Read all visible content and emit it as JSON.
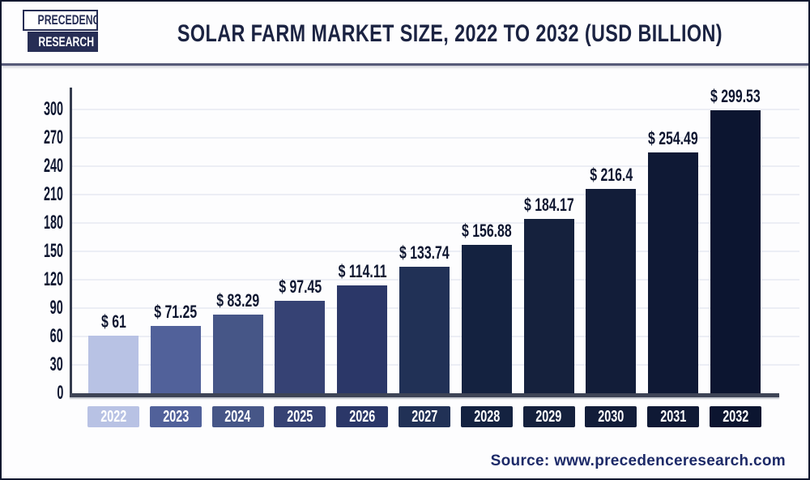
{
  "header": {
    "logo": {
      "line1": "PRECEDENCE",
      "line2": "RESEARCH"
    },
    "title": "SOLAR FARM MARKET SIZE, 2022 TO 2032 (USD BILLION)"
  },
  "chart_data": {
    "type": "bar",
    "title": "Solar Farm Market Size, 2022 to 2032 (USD Billion)",
    "categories": [
      "2022",
      "2023",
      "2024",
      "2025",
      "2026",
      "2027",
      "2028",
      "2029",
      "2030",
      "2031",
      "2032"
    ],
    "values": [
      61,
      71.25,
      83.29,
      97.45,
      114.11,
      133.74,
      156.88,
      184.17,
      216.4,
      254.49,
      299.53
    ],
    "value_labels": [
      "$ 61",
      "$ 71.25",
      "$ 83.29",
      "$ 97.45",
      "$ 114.11",
      "$ 133.74",
      "$ 156.88",
      "$ 184.17",
      "$ 216.4",
      "$ 254.49",
      "$ 299.53"
    ],
    "bar_colors": [
      "#b8c2e4",
      "#51619a",
      "#465687",
      "#364274",
      "#2b3768",
      "#213156",
      "#142240",
      "#15213d",
      "#121d39",
      "#0f1935",
      "#0c1530"
    ],
    "xlabel": "",
    "ylabel": "",
    "ylim": [
      0,
      300
    ],
    "yticks": [
      0,
      30,
      60,
      90,
      120,
      150,
      180,
      210,
      240,
      270,
      300
    ],
    "grid": "horizontal",
    "legend": "none"
  },
  "footer": {
    "source_label": "Source: www.precedenceresearch.com"
  },
  "colors": {
    "title_navy": "#1b2342",
    "axis_dark": "#3e4456",
    "gridline": "#eceef5",
    "label_dark": "#0e1630",
    "logo_navy": "#272e55",
    "source_navy": "#1d2a68"
  }
}
